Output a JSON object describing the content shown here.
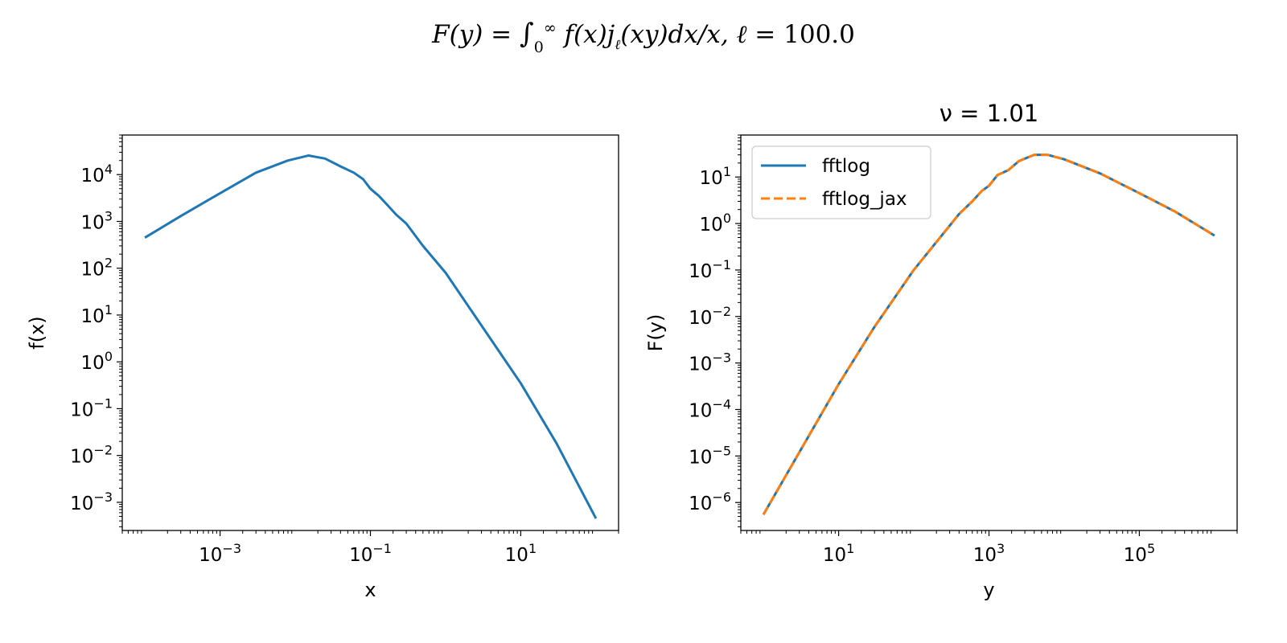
{
  "figure": {
    "suptitle": {
      "lhs": "F(y) = ",
      "integral": "∫",
      "lower": "0",
      "upper": "∞",
      "integrand": "f(x)j",
      "sub": "ℓ",
      "rest": "(xy)dx/x, ℓ = ",
      "value": "100.0"
    }
  },
  "chart_data": [
    {
      "type": "line",
      "title": "",
      "xlabel": "x",
      "ylabel": "f(x)",
      "xscale": "log",
      "yscale": "log",
      "xlim": [
        5e-05,
        200
      ],
      "ylim": [
        0.00025,
        70000
      ],
      "xticks": [
        {
          "value": 0.001,
          "base": "10",
          "exp": "−3"
        },
        {
          "value": 0.1,
          "base": "10",
          "exp": "−1"
        },
        {
          "value": 10,
          "base": "10",
          "exp": "1"
        }
      ],
      "yticks": [
        {
          "value": 10000,
          "base": "10",
          "exp": "4"
        },
        {
          "value": 1000,
          "base": "10",
          "exp": "3"
        },
        {
          "value": 100,
          "base": "10",
          "exp": "2"
        },
        {
          "value": 10,
          "base": "10",
          "exp": "1"
        },
        {
          "value": 1,
          "base": "10",
          "exp": "0"
        },
        {
          "value": 0.1,
          "base": "10",
          "exp": "−1"
        },
        {
          "value": 0.01,
          "base": "10",
          "exp": "−2"
        },
        {
          "value": 0.001,
          "base": "10",
          "exp": "−3"
        }
      ],
      "grid": false,
      "series": [
        {
          "color": "#1f77b4",
          "style": "solid",
          "x": [
            0.0001,
            0.0003,
            0.001,
            0.003,
            0.008,
            0.015,
            0.025,
            0.04,
            0.06,
            0.08,
            0.1,
            0.13,
            0.17,
            0.22,
            0.3,
            0.5,
            1,
            3,
            10,
            30,
            100
          ],
          "y": [
            450,
            1300,
            4000,
            11000,
            20000,
            25500,
            22000,
            15000,
            11000,
            8000,
            5000,
            3500,
            2200,
            1400,
            900,
            300,
            80,
            6,
            0.35,
            0.018,
            0.00045
          ]
        }
      ]
    },
    {
      "type": "line",
      "title": "ν = 1.01",
      "xlabel": "y",
      "ylabel": "F(y)",
      "xscale": "log",
      "yscale": "log",
      "xlim": [
        0.5,
        2000000
      ],
      "ylim": [
        2.5e-07,
        80
      ],
      "xticks": [
        {
          "value": 10,
          "base": "10",
          "exp": "1"
        },
        {
          "value": 1000,
          "base": "10",
          "exp": "3"
        },
        {
          "value": 100000,
          "base": "10",
          "exp": "5"
        }
      ],
      "yticks": [
        {
          "value": 10,
          "base": "10",
          "exp": "1"
        },
        {
          "value": 1,
          "base": "10",
          "exp": "0"
        },
        {
          "value": 0.1,
          "base": "10",
          "exp": "−1"
        },
        {
          "value": 0.01,
          "base": "10",
          "exp": "−2"
        },
        {
          "value": 0.001,
          "base": "10",
          "exp": "−3"
        },
        {
          "value": 0.0001,
          "base": "10",
          "exp": "−4"
        },
        {
          "value": 1e-05,
          "base": "10",
          "exp": "−5"
        },
        {
          "value": 1e-06,
          "base": "10",
          "exp": "−6"
        }
      ],
      "grid": false,
      "legend_position": "top-left",
      "series": [
        {
          "name": "fftlog",
          "color": "#1f77b4",
          "style": "solid",
          "x": [
            1,
            3,
            10,
            30,
            100,
            200,
            400,
            600,
            800,
            1000,
            1300,
            1800,
            2500,
            4000,
            6000,
            10000,
            30000,
            100000,
            300000,
            1000000
          ],
          "y": [
            5.5e-07,
            1.2e-05,
            0.00035,
            0.006,
            0.1,
            0.4,
            1.6,
            3,
            5,
            6.5,
            11,
            14,
            22,
            30,
            30,
            24,
            12,
            4.5,
            1.8,
            0.55
          ]
        },
        {
          "name": "fftlog_jax",
          "color": "#ff7f0e",
          "style": "dashed",
          "x": [
            1,
            3,
            10,
            30,
            100,
            200,
            400,
            600,
            800,
            1000,
            1300,
            1800,
            2500,
            4000,
            6000,
            10000,
            30000,
            100000,
            300000,
            1000000
          ],
          "y": [
            5.5e-07,
            1.2e-05,
            0.00035,
            0.006,
            0.1,
            0.4,
            1.6,
            3,
            5,
            6.5,
            11,
            14,
            22,
            30,
            30,
            24,
            12,
            4.5,
            1.8,
            0.55
          ]
        }
      ]
    }
  ]
}
